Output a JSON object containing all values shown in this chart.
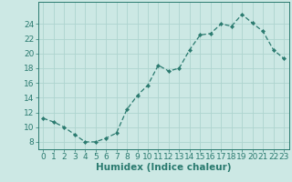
{
  "x": [
    0,
    1,
    2,
    3,
    4,
    5,
    6,
    7,
    8,
    9,
    10,
    11,
    12,
    13,
    14,
    15,
    16,
    17,
    18,
    19,
    20,
    21,
    22,
    23
  ],
  "y": [
    11.2,
    10.7,
    10.0,
    9.0,
    8.0,
    8.0,
    8.5,
    9.2,
    12.4,
    14.3,
    15.7,
    18.4,
    17.6,
    18.0,
    20.5,
    22.5,
    22.7,
    24.0,
    23.7,
    25.3,
    24.1,
    23.0,
    20.5,
    19.3
  ],
  "line_color": "#2a7a6f",
  "marker": "D",
  "marker_size": 2.2,
  "bg_color": "#cce8e4",
  "grid_color": "#aed4cf",
  "xlabel": "Humidex (Indice chaleur)",
  "ylim": [
    7,
    27
  ],
  "xlim": [
    -0.5,
    23.5
  ],
  "yticks": [
    8,
    10,
    12,
    14,
    16,
    18,
    20,
    22,
    24
  ],
  "xticks": [
    0,
    1,
    2,
    3,
    4,
    5,
    6,
    7,
    8,
    9,
    10,
    11,
    12,
    13,
    14,
    15,
    16,
    17,
    18,
    19,
    20,
    21,
    22,
    23
  ],
  "xtick_labels": [
    "0",
    "1",
    "2",
    "3",
    "4",
    "5",
    "6",
    "7",
    "8",
    "9",
    "10",
    "11",
    "12",
    "13",
    "14",
    "15",
    "16",
    "17",
    "18",
    "19",
    "20",
    "21",
    "22",
    "23"
  ],
  "xlabel_fontsize": 7.5,
  "tick_fontsize": 6.5
}
